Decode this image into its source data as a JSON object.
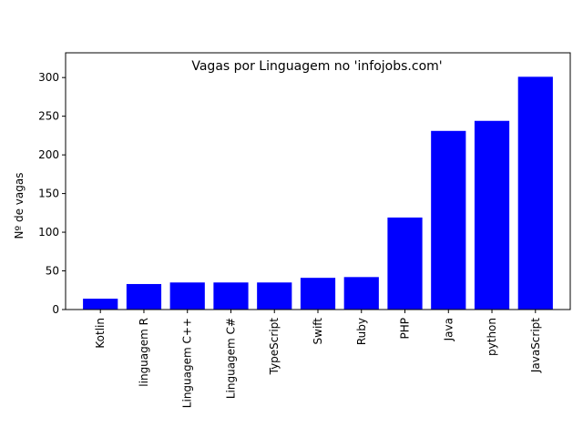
{
  "chart_data": {
    "type": "bar",
    "title": "Vagas por Linguagem no 'infojobs.com'",
    "xlabel": "",
    "ylabel": "Nº de vagas",
    "categories": [
      "Kotlin",
      "linguagem R",
      "Linguagem C++",
      "Linguagem C#",
      "TypeScript",
      "Swift",
      "Ruby",
      "PHP",
      "Java",
      "python",
      "JavaScript"
    ],
    "values": [
      14,
      33,
      35,
      35,
      35,
      41,
      42,
      119,
      231,
      244,
      301
    ],
    "ylim": [
      0,
      332
    ],
    "yticks": [
      0,
      50,
      100,
      150,
      200,
      250,
      300
    ],
    "bar_color": "#0000ff",
    "grid": false,
    "legend": "none"
  }
}
